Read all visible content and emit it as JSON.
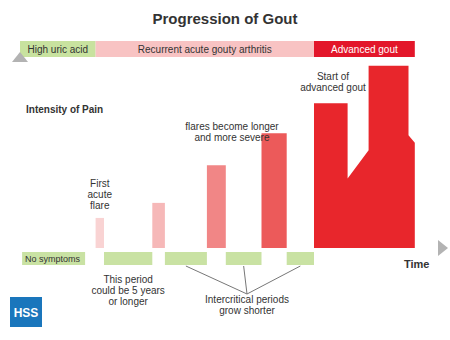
{
  "chart_data": {
    "type": "bar",
    "title": "Progression of Gout",
    "y_label": "Intensity of Pain",
    "x_label": "Time",
    "xlim": [
      0,
      100
    ],
    "ylim": [
      0,
      100
    ],
    "tick_labels": false,
    "grid": false,
    "bars": [
      {
        "x": [
          18,
          20
        ],
        "value": 16,
        "color": "#f9d3d3"
      },
      {
        "x": [
          31.5,
          34.5
        ],
        "value": 24,
        "color": "#f6b8b8"
      },
      {
        "x": [
          44.5,
          49
        ],
        "value": 44,
        "color": "#f18686"
      },
      {
        "x": [
          57.5,
          63.5
        ],
        "value": 61,
        "color": "#ec5a5a"
      }
    ],
    "advanced": {
      "x": [
        70,
        70,
        78,
        78,
        83,
        83,
        92.5,
        92.5,
        94,
        94
      ],
      "values": [
        0,
        77,
        77,
        37,
        52,
        97,
        97,
        60,
        56,
        0
      ],
      "color": "#e8262c"
    },
    "phases": [
      {
        "label": "High uric acid",
        "x": [
          0,
          18
        ],
        "color": "#c8e29f"
      },
      {
        "label": "Recurrent acute gouty arthritis",
        "x": [
          18,
          70
        ],
        "color": "#f8c3c3"
      },
      {
        "label": "Advanced gout",
        "x": [
          70,
          94
        ],
        "color": "#e3162a"
      }
    ],
    "periods": [
      {
        "x": [
          0.5,
          15.5
        ],
        "label": "No symptoms"
      },
      {
        "x": [
          20,
          31.5
        ]
      },
      {
        "x": [
          34.5,
          44.5
        ]
      },
      {
        "x": [
          49,
          57.5
        ]
      },
      {
        "x": [
          63.5,
          70
        ]
      }
    ],
    "period_color": "#c9e2a3",
    "annotations": [
      {
        "lines": [
          "First",
          "acute",
          "flare"
        ]
      },
      {
        "lines": [
          "flares become longer",
          "and more severe"
        ]
      },
      {
        "lines": [
          "Start of",
          "advanced gout"
        ]
      },
      {
        "lines": [
          "This period",
          "could be 5 years",
          "or longer"
        ]
      },
      {
        "lines": [
          "Intercritical periods",
          "grow shorter"
        ]
      }
    ],
    "logo": "HSS"
  }
}
